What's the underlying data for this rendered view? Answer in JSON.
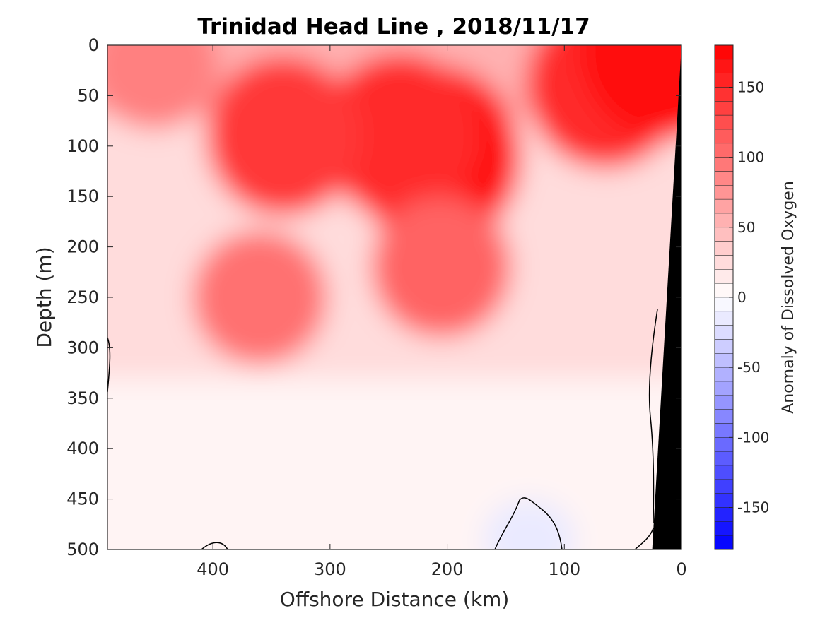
{
  "chart_data": {
    "type": "heatmap",
    "title": "Trinidad Head Line , 2018/11/17",
    "xlabel": "Offshore Distance (km)",
    "ylabel": "Depth (m)",
    "colorbar_label": "Anomaly of Dissolved Oxygen",
    "xlim": [
      490,
      0
    ],
    "ylim": [
      500,
      0
    ],
    "x_reversed": true,
    "y_reversed": true,
    "x_ticks": [
      "400",
      "300",
      "200",
      "100",
      "0"
    ],
    "x_tick_values": [
      400,
      300,
      200,
      100,
      0
    ],
    "y_ticks": [
      "0",
      "50",
      "100",
      "150",
      "200",
      "250",
      "300",
      "350",
      "400",
      "450",
      "500"
    ],
    "y_tick_values": [
      0,
      50,
      100,
      150,
      200,
      250,
      300,
      350,
      400,
      450,
      500
    ],
    "colorbar": {
      "range": [
        -180,
        180
      ],
      "step": 10,
      "ticks": [
        "150",
        "100",
        "50",
        "0",
        "-50",
        "-100",
        "-150"
      ],
      "tick_values": [
        150,
        100,
        50,
        0,
        -50,
        -100,
        -150
      ],
      "colormap": "blue-white-red"
    },
    "contour_levels": [
      0
    ],
    "colors": {
      "positive": "#ff0000",
      "negative": "#0000ff",
      "zero": "#ffffff",
      "bathymetry": "#000000"
    },
    "features": [
      {
        "x": 210,
        "depth": 110,
        "value": 175
      },
      {
        "x": 240,
        "depth": 90,
        "value": 150
      },
      {
        "x": 340,
        "depth": 90,
        "value": 140
      },
      {
        "x": 360,
        "depth": 250,
        "value": 100
      },
      {
        "x": 205,
        "depth": 220,
        "value": 110
      },
      {
        "x": 65,
        "depth": 40,
        "value": 150
      },
      {
        "x": 15,
        "depth": 5,
        "value": 170
      },
      {
        "x": 450,
        "depth": 20,
        "value": 90
      },
      {
        "x": 130,
        "depth": 490,
        "value": -15
      }
    ],
    "bathymetry_depth_at_distance": [
      {
        "distance": 0,
        "depth": 0
      },
      {
        "distance": 25,
        "depth": 500
      }
    ]
  }
}
